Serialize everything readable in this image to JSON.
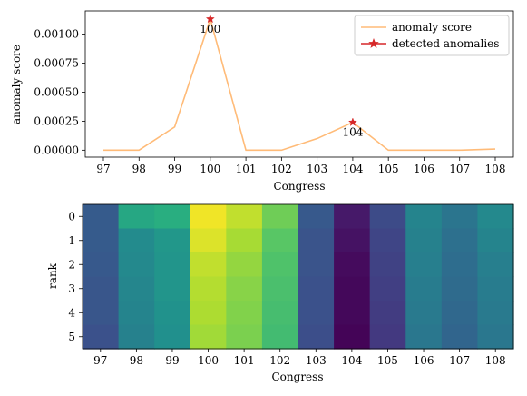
{
  "chart_data": [
    {
      "type": "line",
      "xlabel": "Congress",
      "ylabel": "anomaly score",
      "x": [
        97,
        98,
        99,
        100,
        101,
        102,
        103,
        104,
        105,
        106,
        107,
        108
      ],
      "x_tick_labels": [
        "97",
        "98",
        "99",
        "100",
        "101",
        "102",
        "103",
        "104",
        "105",
        "106",
        "107",
        "108"
      ],
      "ylim": [
        -6e-05,
        0.0012
      ],
      "y_ticks": [
        0.0,
        0.00025,
        0.0005,
        0.00075,
        0.001
      ],
      "y_tick_labels": [
        "0.00000",
        "0.00025",
        "0.00050",
        "0.00075",
        "0.00100"
      ],
      "legend_position": "upper-right",
      "series": [
        {
          "name": "anomaly score",
          "color": "#ffbb78",
          "values": [
            0.0,
            0.0,
            0.0002,
            0.00113,
            0.0,
            0.0,
            0.0001,
            0.00024,
            0.0,
            0.0,
            0.0,
            1e-05
          ]
        },
        {
          "name": "detected anomalies",
          "color": "#d62728",
          "marker": "star",
          "points": [
            {
              "x": 100,
              "y": 0.00113,
              "label": "100"
            },
            {
              "x": 104,
              "y": 0.00024,
              "label": "104"
            }
          ]
        }
      ]
    },
    {
      "type": "heatmap",
      "xlabel": "Congress",
      "ylabel": "rank",
      "x_tick_labels": [
        "97",
        "98",
        "99",
        "100",
        "101",
        "102",
        "103",
        "104",
        "105",
        "106",
        "107",
        "108"
      ],
      "y_tick_labels": [
        "0",
        "1",
        "2",
        "3",
        "4",
        "5"
      ],
      "colormap": "viridis",
      "value_range": [
        0,
        1
      ],
      "values": [
        [
          0.29,
          0.6,
          0.63,
          0.98,
          0.91,
          0.78,
          0.28,
          0.07,
          0.23,
          0.45,
          0.39,
          0.47
        ],
        [
          0.29,
          0.48,
          0.53,
          0.95,
          0.87,
          0.74,
          0.26,
          0.05,
          0.21,
          0.44,
          0.37,
          0.45
        ],
        [
          0.28,
          0.47,
          0.52,
          0.91,
          0.84,
          0.72,
          0.26,
          0.03,
          0.2,
          0.43,
          0.36,
          0.43
        ],
        [
          0.27,
          0.46,
          0.52,
          0.89,
          0.82,
          0.71,
          0.25,
          0.02,
          0.19,
          0.42,
          0.35,
          0.42
        ],
        [
          0.27,
          0.45,
          0.51,
          0.88,
          0.81,
          0.7,
          0.25,
          0.02,
          0.18,
          0.41,
          0.34,
          0.41
        ],
        [
          0.25,
          0.44,
          0.5,
          0.86,
          0.8,
          0.69,
          0.24,
          0.01,
          0.17,
          0.4,
          0.33,
          0.4
        ]
      ]
    }
  ]
}
